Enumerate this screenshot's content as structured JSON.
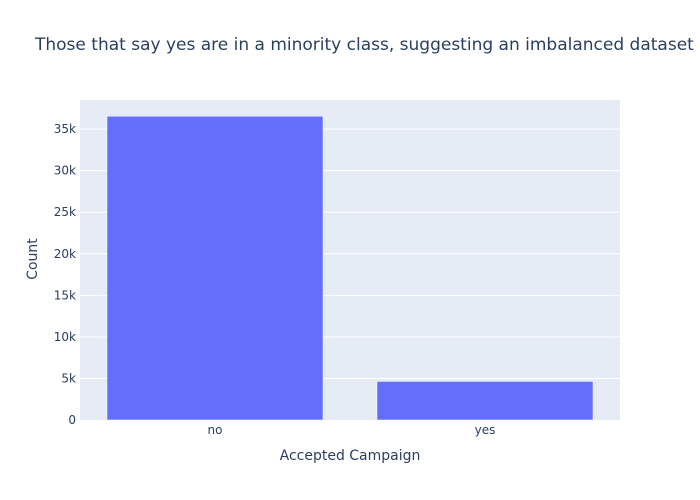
{
  "chart_data": {
    "type": "bar",
    "title": "Those that say yes are in a minority class, suggesting an imbalanced dataset",
    "xlabel": "Accepted Campaign",
    "ylabel": "Count",
    "categories": [
      "no",
      "yes"
    ],
    "values": [
      36548,
      4640
    ],
    "ylim": [
      0,
      38500
    ],
    "y_ticks": [
      0,
      5000,
      10000,
      15000,
      20000,
      25000,
      30000,
      35000
    ],
    "y_tick_labels": [
      "0",
      "5k",
      "10k",
      "15k",
      "20k",
      "25k",
      "30k",
      "35k"
    ],
    "grid": true,
    "legend": false,
    "colors": {
      "bar": "#636efa",
      "plot_bg": "#e5ecf6",
      "grid": "#ffffff",
      "text": "#2a3f5f"
    }
  }
}
